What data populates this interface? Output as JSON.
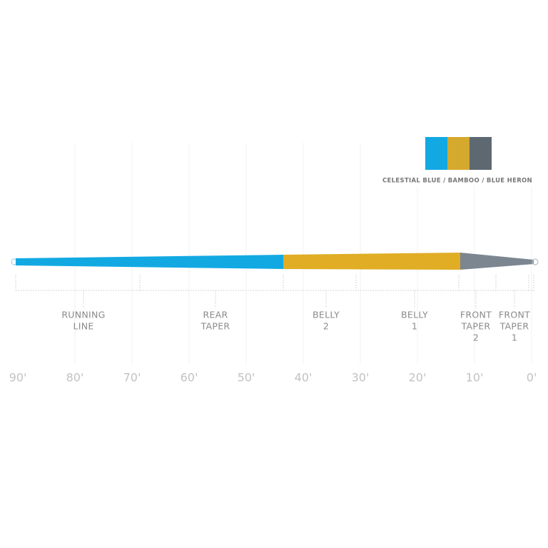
{
  "legend": {
    "label": "CELESTIAL BLUE / BAMBOO / BLUE HERON"
  },
  "sections": [
    {
      "lines": [
        "RUNNING",
        "LINE"
      ]
    },
    {
      "lines": [
        "REAR",
        "TAPER"
      ]
    },
    {
      "lines": [
        "BELLY",
        "2"
      ]
    },
    {
      "lines": [
        "BELLY",
        "1"
      ]
    },
    {
      "lines": [
        "FRONT",
        "TAPER",
        "2"
      ]
    },
    {
      "lines": [
        "FRONT",
        "TAPER",
        "1"
      ]
    }
  ],
  "scale": [
    "90'",
    "80'",
    "70'",
    "60'",
    "50'",
    "40'",
    "30'",
    "20'",
    "10'",
    "0'"
  ]
}
